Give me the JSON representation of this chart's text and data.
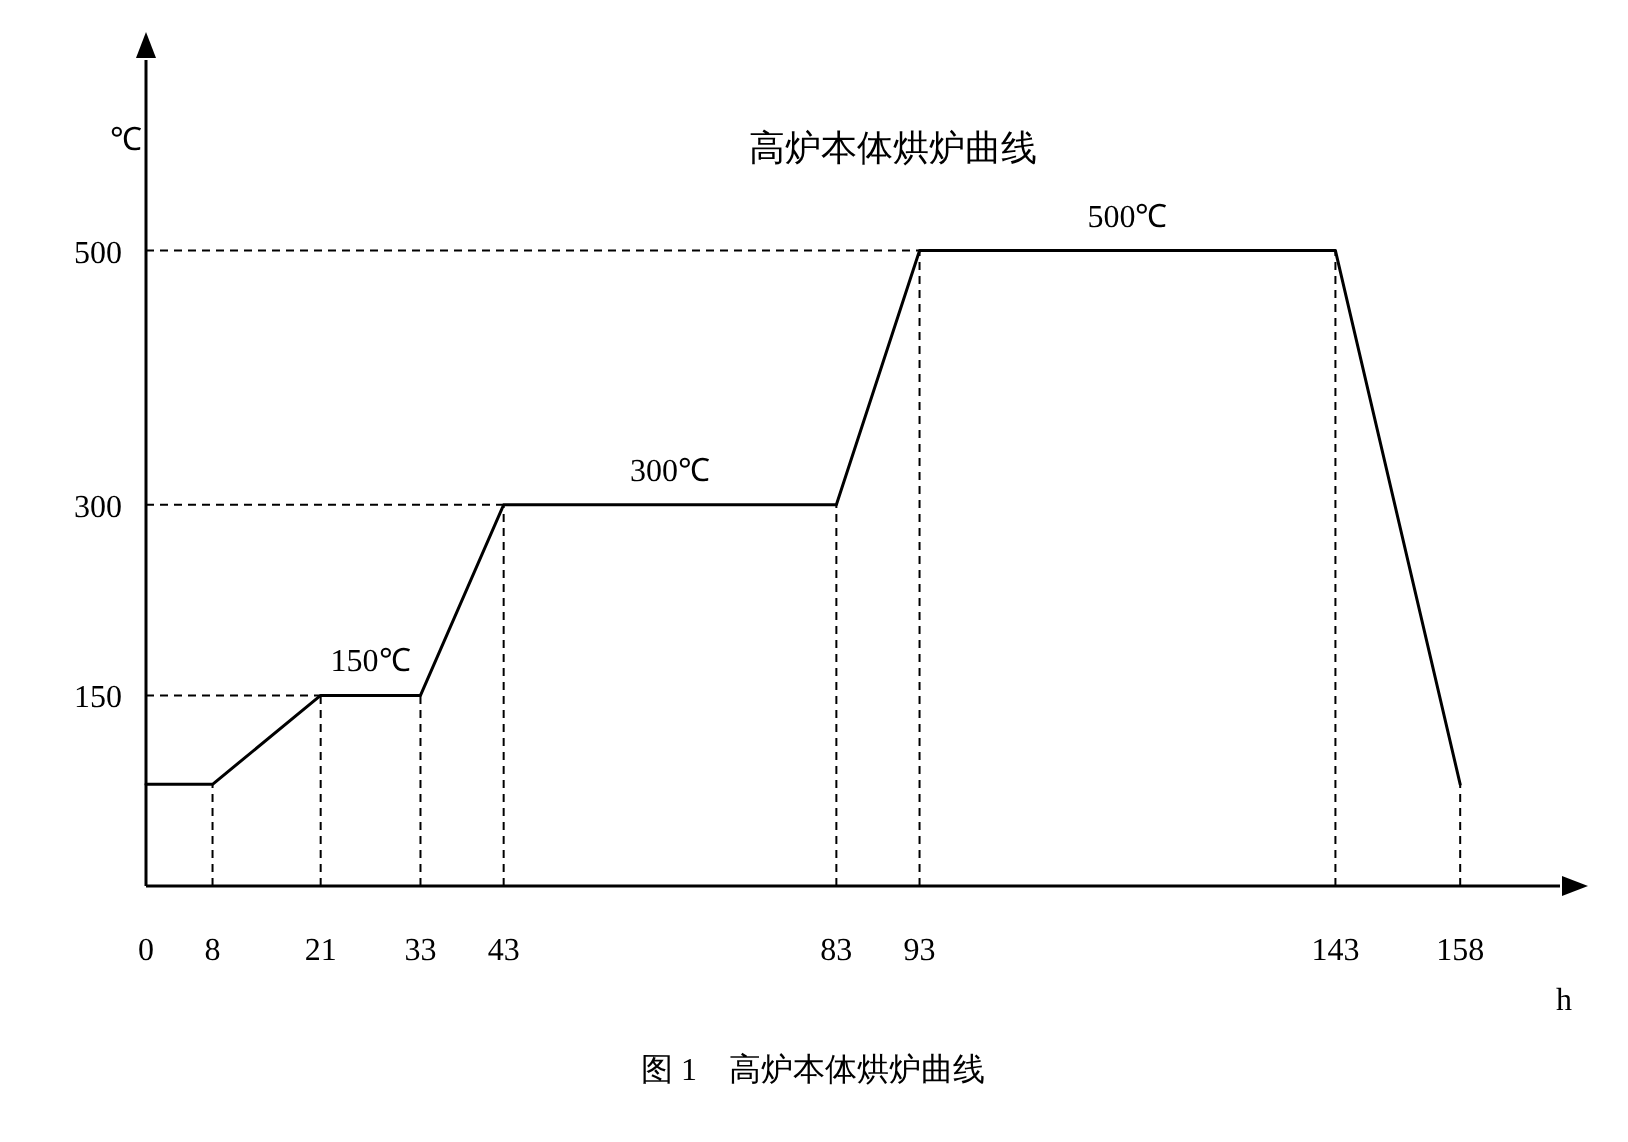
{
  "chart_data": {
    "type": "line",
    "title": "高炉本体烘炉曲线",
    "xlabel": "h",
    "ylabel": "℃",
    "x": [
      0,
      8,
      21,
      33,
      43,
      83,
      93,
      143,
      158
    ],
    "series": [
      {
        "color": "#000000",
        "values": [
          80,
          80,
          150,
          150,
          300,
          300,
          500,
          500,
          80
        ]
      }
    ],
    "xlim": [
      0,
      170
    ],
    "ylim": [
      0,
      650
    ],
    "xticks": [
      0,
      8,
      21,
      33,
      43,
      83,
      93,
      143,
      158
    ],
    "yticks": [
      150,
      300,
      500
    ],
    "ref_lines": [
      {
        "axis": "y",
        "value": 150,
        "line_style": "dashed",
        "color": "#000000"
      },
      {
        "axis": "y",
        "value": 300,
        "line_style": "dashed",
        "color": "#000000"
      },
      {
        "axis": "y",
        "value": 500,
        "line_style": "dashed",
        "color": "#000000"
      },
      {
        "axis": "x",
        "value": 8,
        "line_style": "dashed",
        "color": "#000000"
      },
      {
        "axis": "x",
        "value": 21,
        "line_style": "dashed",
        "color": "#000000"
      },
      {
        "axis": "x",
        "value": 33,
        "line_style": "dashed",
        "color": "#000000"
      },
      {
        "axis": "x",
        "value": 43,
        "line_style": "dashed",
        "color": "#000000"
      },
      {
        "axis": "x",
        "value": 83,
        "line_style": "dashed",
        "color": "#000000"
      },
      {
        "axis": "x",
        "value": 93,
        "line_style": "dashed",
        "color": "#000000"
      },
      {
        "axis": "x",
        "value": 143,
        "line_style": "dashed",
        "color": "#000000"
      },
      {
        "axis": "x",
        "value": 158,
        "line_style": "dashed",
        "color": "#000000"
      }
    ],
    "annotations": [
      {
        "text": "150℃",
        "x": 27,
        "y": 150
      },
      {
        "text": "300℃",
        "x": 63,
        "y": 300
      },
      {
        "text": "500℃",
        "x": 118,
        "y": 500
      },
      "图 1　高炉本体烘炉曲线"
    ],
    "grid": false,
    "marker": "none",
    "line_style": "solid"
  }
}
